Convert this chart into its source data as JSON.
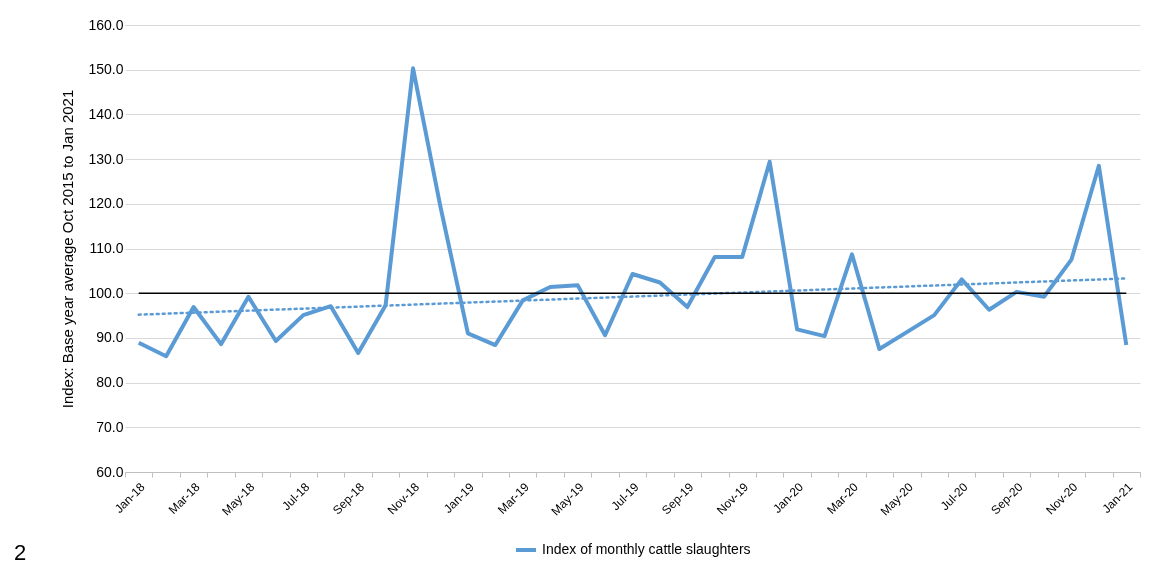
{
  "chart_data": {
    "type": "line",
    "ylabel": "Index: Base year average Oct 2015 to Jan  2021",
    "categories": [
      "Jan-18",
      null,
      "Mar-18",
      null,
      "May-18",
      null,
      "Jul-18",
      null,
      "Sep-18",
      null,
      "Nov-18",
      null,
      "Jan-19",
      null,
      "Mar-19",
      null,
      "May-19",
      null,
      "Jul-19",
      null,
      "Sep-19",
      null,
      "Nov-19",
      null,
      "Jan-20",
      null,
      "Mar-20",
      null,
      "May-20",
      null,
      "Jul-20",
      null,
      "Sep-20",
      null,
      "Nov-20",
      null,
      "Jan-21"
    ],
    "series": [
      {
        "name": "Index of monthly cattle slaughters",
        "color": "#5b9bd5",
        "line_style": "solid",
        "values": [
          88.9,
          85.9,
          96.9,
          88.6,
          99.2,
          89.3,
          95.1,
          97.1,
          86.6,
          97.3,
          150.3,
          119.3,
          91.0,
          88.4,
          98.4,
          101.4,
          101.8,
          90.6,
          104.3,
          102.4,
          96.9,
          108.1,
          108.1,
          129.4,
          91.9,
          90.4,
          108.7,
          87.5,
          91.3,
          95.1,
          103.1,
          96.3,
          100.3,
          99.2,
          107.5,
          128.5,
          88.4
        ]
      },
      {
        "type": "line",
        "color": "#5b9bd5",
        "line_style": "dotted",
        "x": [
          "Jan-18",
          "Jan-21"
        ],
        "values": [
          95.2,
          103.3
        ]
      }
    ],
    "ylim": [
      60,
      160
    ],
    "yticks": [
      {
        "value": 60,
        "label": "60.0"
      },
      {
        "value": 70,
        "label": "70.0"
      },
      {
        "value": 80,
        "label": "80.0"
      },
      {
        "value": 90,
        "label": "90.0"
      },
      {
        "value": 100,
        "label": "100.0"
      },
      {
        "value": 110,
        "label": "110.0"
      },
      {
        "value": 120,
        "label": "120.0"
      },
      {
        "value": 130,
        "label": "130.0"
      },
      {
        "value": 140,
        "label": "140.0"
      },
      {
        "value": 150,
        "label": "150.0"
      },
      {
        "value": 160,
        "label": "160.0"
      }
    ],
    "ref_lines": [
      {
        "axis": "y",
        "value": 100,
        "color": "#000000"
      }
    ],
    "grid": "y",
    "legend": "bottom",
    "marker": "none",
    "annotations": [
      "2"
    ]
  }
}
